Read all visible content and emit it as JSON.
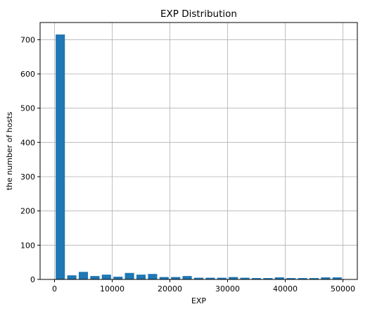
{
  "chart_data": {
    "type": "bar",
    "title": "EXP Distribution",
    "xlabel": "EXP",
    "ylabel": "the number of hosts",
    "xlim": [
      -2500,
      52500
    ],
    "ylim": [
      0,
      750
    ],
    "grid": true,
    "bar_color": "#1f77b4",
    "x_ticks": [
      0,
      10000,
      20000,
      30000,
      40000,
      50000
    ],
    "x_tick_labels": [
      "0",
      "10000",
      "20000",
      "30000",
      "40000",
      "50000"
    ],
    "y_ticks": [
      0,
      100,
      200,
      300,
      400,
      500,
      600,
      700
    ],
    "y_tick_labels": [
      "0",
      "100",
      "200",
      "300",
      "400",
      "500",
      "600",
      "700"
    ],
    "bin_width": 2000,
    "bar_relative_width": 0.8,
    "bin_centers": [
      1000,
      3000,
      5000,
      7000,
      9000,
      11000,
      13000,
      15000,
      17000,
      19000,
      21000,
      23000,
      25000,
      27000,
      29000,
      31000,
      33000,
      35000,
      37000,
      39000,
      41000,
      43000,
      45000,
      47000,
      49000
    ],
    "values": [
      715,
      12,
      22,
      10,
      14,
      8,
      19,
      14,
      16,
      7,
      7,
      10,
      5,
      5,
      5,
      7,
      5,
      4,
      4,
      6,
      4,
      4,
      4,
      6,
      6
    ]
  }
}
